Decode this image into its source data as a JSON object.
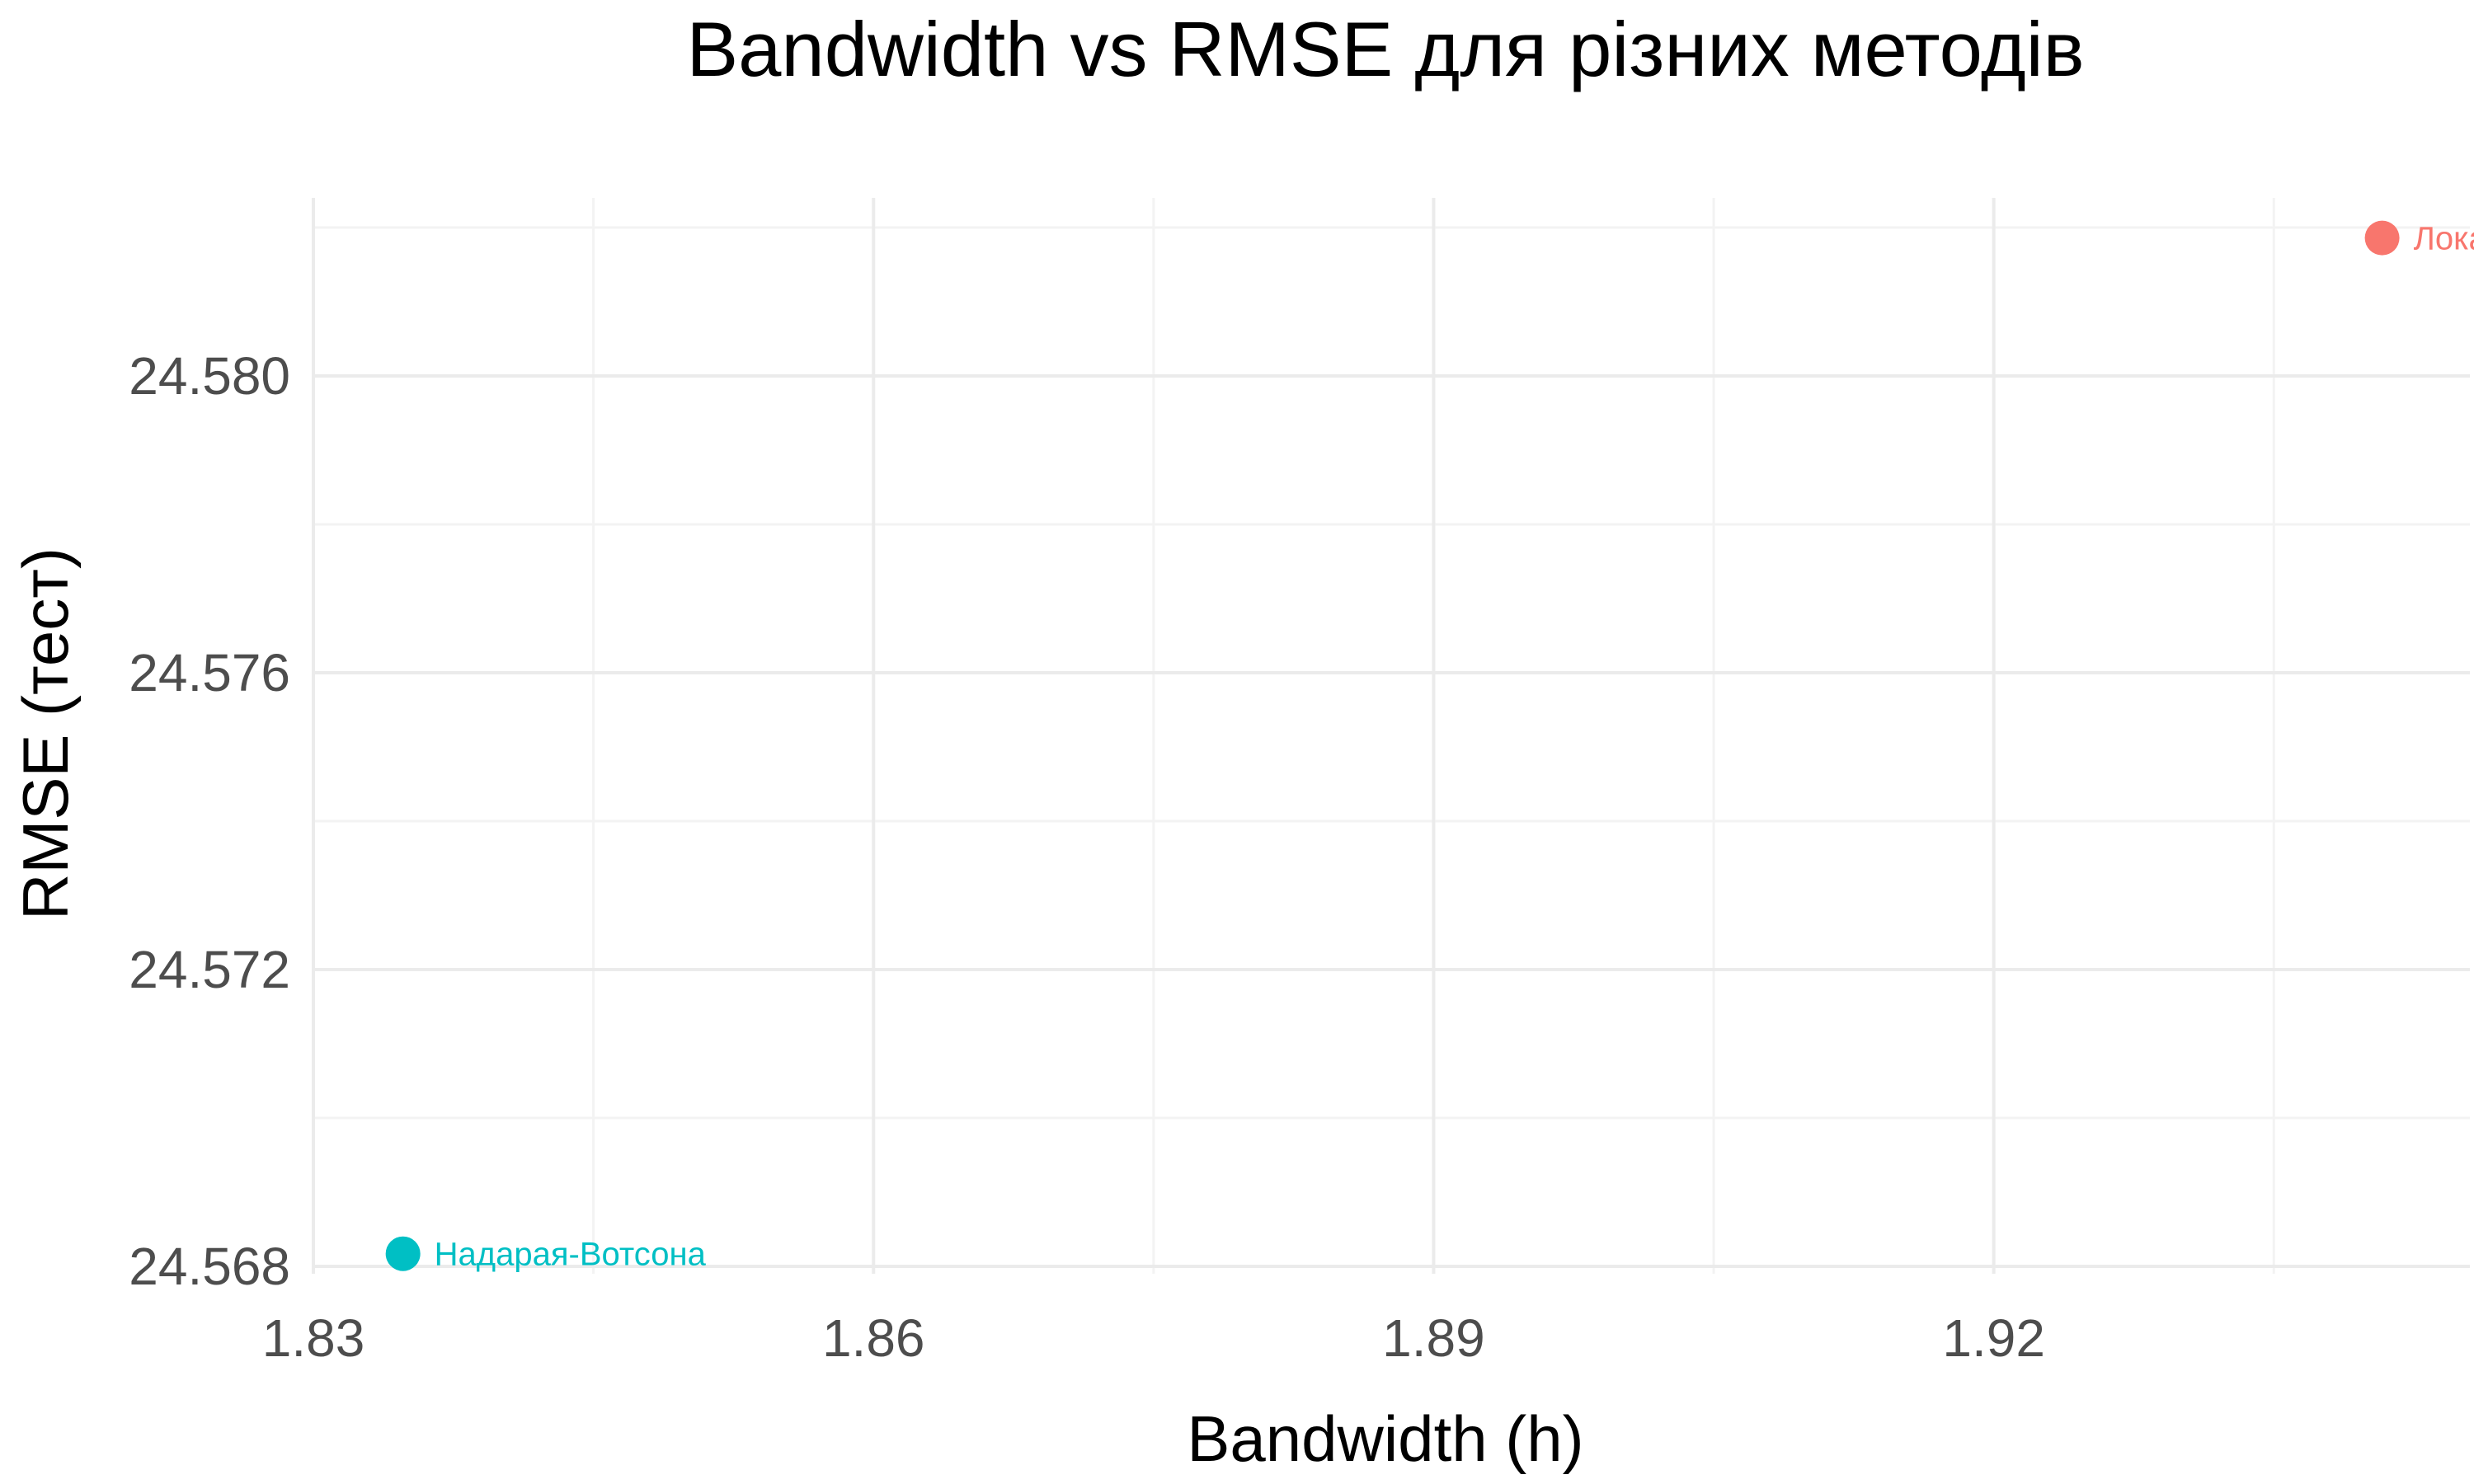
{
  "chart_data": {
    "type": "scatter",
    "title": "Bandwidth vs RMSE для різних методів",
    "xlabel": "Bandwidth (h)",
    "ylabel": "RMSE (тест)",
    "xlim": [
      1.83,
      1.9455
    ],
    "ylim": [
      24.5679,
      24.5824
    ],
    "x_ticks": [
      1.83,
      1.86,
      1.89,
      1.92
    ],
    "x_tick_labels": [
      "1.83",
      "1.86",
      "1.89",
      "1.92"
    ],
    "y_ticks": [
      24.568,
      24.572,
      24.576,
      24.58
    ],
    "y_tick_labels": [
      "24.568",
      "24.572",
      "24.576",
      "24.580"
    ],
    "grid": true,
    "points": [
      {
        "label": "Надарая-Ватсона",
        "display_label": "Надарая-Вотсона",
        "x": 1.8348,
        "y": 24.56817,
        "color": "#00BFC4"
      },
      {
        "label": "Лока",
        "display_label": "Лока",
        "x": 1.9408,
        "y": 24.58186,
        "color": "#F8766D"
      }
    ]
  }
}
